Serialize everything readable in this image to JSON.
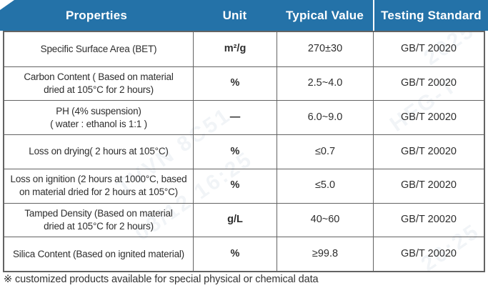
{
  "header": {
    "columns": [
      "Properties",
      "Unit",
      "Typical Value",
      "Testing Standard"
    ]
  },
  "rows": [
    {
      "property": "Specific Surface Area (BET)",
      "unit": "m²/g",
      "value": "270±30",
      "standard": "GB/T 20020"
    },
    {
      "property": "Carbon Content ( Based on material\ndried at 105°C for 2 hours)",
      "unit": "%",
      "value": "2.5~4.0",
      "standard": "GB/T 20020"
    },
    {
      "property": "PH (4% suspension)\n( water : ethanol is 1:1 )",
      "unit": "—",
      "value": "6.0~9.0",
      "standard": "GB/T 20020"
    },
    {
      "property": "Loss on drying( 2 hours at 105°C)",
      "unit": "%",
      "value": "≤0.7",
      "standard": "GB/T 20020"
    },
    {
      "property": "Loss on ignition (2 hours at 1000°C, based\non material dried for 2 hours at 105°C)",
      "unit": "%",
      "value": "≤5.0",
      "standard": "GB/T 20020"
    },
    {
      "property": "Tamped Density (Based on material\ndried at 105°C for 2 hours)",
      "unit": "g/L",
      "value": "40~60",
      "standard": "GB/T 20020"
    },
    {
      "property": "Silica Content (Based on ignited material)",
      "unit": "%",
      "value": "≥99.8",
      "standard": "GB/T 20020"
    }
  ],
  "footer": {
    "note": "※ customized products available for special physical or chemical data"
  },
  "colors": {
    "header_bg": "#2472a8",
    "header_text": "#ffffff",
    "grid_line": "#636363",
    "body_text": "#2e2e2e",
    "watermark_color": "#7d9cb5"
  },
  "watermark": {
    "fragments": [
      "TVVN 8C",
      "TVVN 8C51",
      "08/12 16:25",
      "HFG-T",
      "2025",
      "26:25"
    ]
  }
}
